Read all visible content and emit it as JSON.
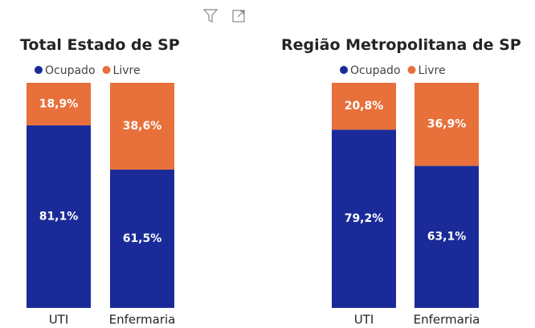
{
  "chart_data": [
    {
      "type": "stacked-bar-100",
      "title": "Total Estado de SP",
      "categories": [
        "UTI",
        "Enfermaria"
      ],
      "series": [
        {
          "name": "Ocupado",
          "color": "#1a2b99",
          "values": [
            81.1,
            61.5
          ],
          "value_labels": [
            "81,1%",
            "61,5%"
          ]
        },
        {
          "name": "Livre",
          "color": "#e8703a",
          "values": [
            18.9,
            38.6
          ],
          "value_labels": [
            "18,9%",
            "38,6%"
          ]
        }
      ]
    },
    {
      "type": "stacked-bar-100",
      "title": "Região Metropolitana de SP",
      "categories": [
        "UTI",
        "Enfermaria"
      ],
      "series": [
        {
          "name": "Ocupado",
          "color": "#1a2b99",
          "values": [
            79.2,
            63.1
          ],
          "value_labels": [
            "79,2%",
            "63,1%"
          ]
        },
        {
          "name": "Livre",
          "color": "#e8703a",
          "values": [
            20.8,
            36.9
          ],
          "value_labels": [
            "20,8%",
            "36,9%"
          ]
        }
      ]
    }
  ]
}
